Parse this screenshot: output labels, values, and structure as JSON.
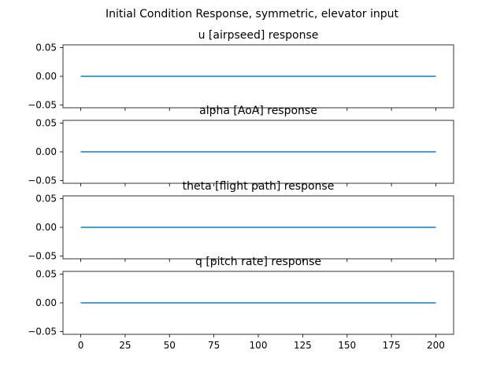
{
  "figure": {
    "suptitle": "Initial Condition Response, symmetric, elevator input"
  },
  "chart_data": [
    {
      "type": "line",
      "title": "u [airpseed] response",
      "x": [
        0,
        200
      ],
      "values": [
        0,
        0
      ],
      "xlim": [
        -10,
        210
      ],
      "ylim": [
        -0.055,
        0.055
      ],
      "xticks": [
        0,
        25,
        50,
        75,
        100,
        125,
        150,
        175,
        200
      ],
      "yticks": [
        -0.05,
        0.0,
        0.05
      ],
      "ytick_labels": [
        "−0.05",
        "0.00",
        "0.05"
      ],
      "show_x_labels": false,
      "grid": false,
      "color": "#1f77b4"
    },
    {
      "type": "line",
      "title": "alpha [AoA] response",
      "x": [
        0,
        200
      ],
      "values": [
        0,
        0
      ],
      "xlim": [
        -10,
        210
      ],
      "ylim": [
        -0.055,
        0.055
      ],
      "xticks": [
        0,
        25,
        50,
        75,
        100,
        125,
        150,
        175,
        200
      ],
      "yticks": [
        -0.05,
        0.0,
        0.05
      ],
      "ytick_labels": [
        "−0.05",
        "0.00",
        "0.05"
      ],
      "show_x_labels": false,
      "grid": false,
      "color": "#1f77b4"
    },
    {
      "type": "line",
      "title": "theta [flight path] response",
      "x": [
        0,
        200
      ],
      "values": [
        0,
        0
      ],
      "xlim": [
        -10,
        210
      ],
      "ylim": [
        -0.055,
        0.055
      ],
      "xticks": [
        0,
        25,
        50,
        75,
        100,
        125,
        150,
        175,
        200
      ],
      "yticks": [
        -0.05,
        0.0,
        0.05
      ],
      "ytick_labels": [
        "−0.05",
        "0.00",
        "0.05"
      ],
      "show_x_labels": false,
      "grid": false,
      "color": "#1f77b4"
    },
    {
      "type": "line",
      "title": "q [pitch rate] response",
      "x": [
        0,
        200
      ],
      "values": [
        0,
        0
      ],
      "xlim": [
        -10,
        210
      ],
      "ylim": [
        -0.055,
        0.055
      ],
      "xticks": [
        0,
        25,
        50,
        75,
        100,
        125,
        150,
        175,
        200
      ],
      "xtick_labels": [
        "0",
        "25",
        "50",
        "75",
        "100",
        "125",
        "150",
        "175",
        "200"
      ],
      "yticks": [
        -0.05,
        0.0,
        0.05
      ],
      "ytick_labels": [
        "−0.05",
        "0.00",
        "0.05"
      ],
      "show_x_labels": true,
      "grid": false,
      "color": "#1f77b4"
    }
  ]
}
